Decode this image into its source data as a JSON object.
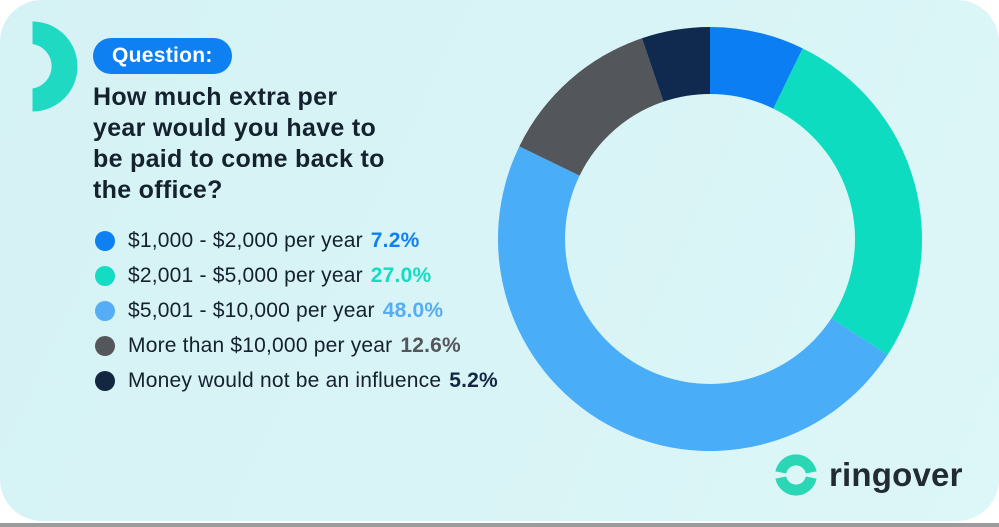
{
  "badge": {
    "label": "Question:",
    "bg_color": "#0f80f2",
    "text_color": "#ffffff"
  },
  "heading": {
    "lines": {
      "0": "How much extra per",
      "1": "year would you have to",
      "2": "be paid to come back to",
      "3": "the office?"
    },
    "full_text": "How much extra per year would you have to be paid to come back to the office?"
  },
  "legend": {
    "items": [
      {
        "label": "$1,000 - $2,000 per year",
        "pct": "7.2%",
        "color": "#0f80f2"
      },
      {
        "label": "$2,001 - $5,000 per year",
        "pct": "27.0%",
        "color": "#14dcc2"
      },
      {
        "label": "$5,001 - $10,000 per year",
        "pct": "48.0%",
        "color": "#55aef5"
      },
      {
        "label": "More than $10,000 per year",
        "pct": "12.6%",
        "color": "#53565a"
      },
      {
        "label": "Money would not be an influence",
        "pct": "5.2%",
        "color": "#142740"
      }
    ]
  },
  "chart_data": {
    "type": "pie",
    "subtype": "donut",
    "title": "How much extra per year would you have to be paid to come back to the office?",
    "labels": [
      "$1,000 - $2,000 per year",
      "$2,001 - $5,000 per year",
      "$5,001 - $10,000 per year",
      "More than $10,000 per year",
      "Money would not be an influence"
    ],
    "values": [
      7.2,
      27.0,
      48.0,
      12.6,
      5.2
    ],
    "unit": "%",
    "colors": [
      "#0a7ef2",
      "#0edcc0",
      "#4aadf8",
      "#53565a",
      "#0f2a4e"
    ],
    "start_angle_deg": 0,
    "direction": "clockwise",
    "inner_radius_ratio": 0.684,
    "legend_position": "left"
  },
  "brand": {
    "name": "ringover",
    "icon_color": "#2bd6b4",
    "text_color": "#232b32"
  },
  "decor": {
    "crescent_color": "#1fd9c3"
  },
  "theme": {
    "card_bg": "#d8f4f6",
    "outside_bg": "#ffffff",
    "text_color": "#14212e",
    "bottom_line_color": "#9b9b9b"
  }
}
